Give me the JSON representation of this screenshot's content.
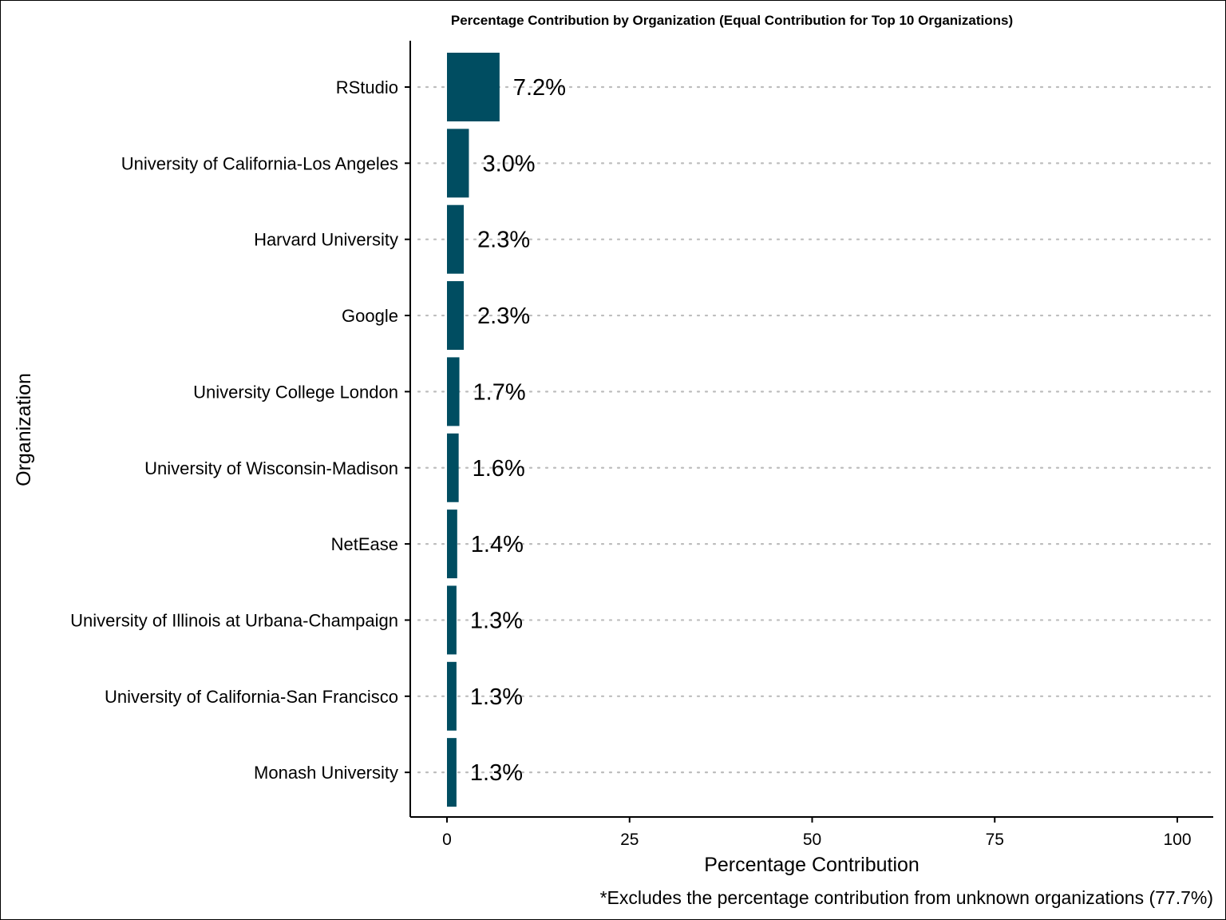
{
  "chart_data": {
    "type": "bar",
    "orientation": "horizontal",
    "title": "Percentage Contribution by Organization (Equal Contribution for Top 10 Organizations)",
    "xlabel": "Percentage Contribution",
    "ylabel": "Organization",
    "caption": "*Excludes the percentage contribution from unknown organizations (77.7%)",
    "xlim": [
      0,
      100
    ],
    "xticks": [
      "0",
      "25",
      "50",
      "75",
      "100"
    ],
    "categories": [
      "RStudio",
      "University of California-Los Angeles",
      "Harvard University",
      "Google",
      "University College London",
      "University of Wisconsin-Madison",
      "NetEase",
      "University of Illinois at Urbana-Champaign",
      "University of California-San Francisco",
      "Monash University"
    ],
    "values": [
      7.2,
      3.0,
      2.3,
      2.3,
      1.7,
      1.6,
      1.4,
      1.3,
      1.3,
      1.3
    ],
    "data_labels": [
      "7.2%",
      "3.0%",
      "2.3%",
      "2.3%",
      "1.7%",
      "1.6%",
      "1.4%",
      "1.3%",
      "1.3%",
      "1.3%"
    ],
    "bar_color": "#004D61",
    "grid": "horizontal dotted",
    "legend": "none"
  }
}
